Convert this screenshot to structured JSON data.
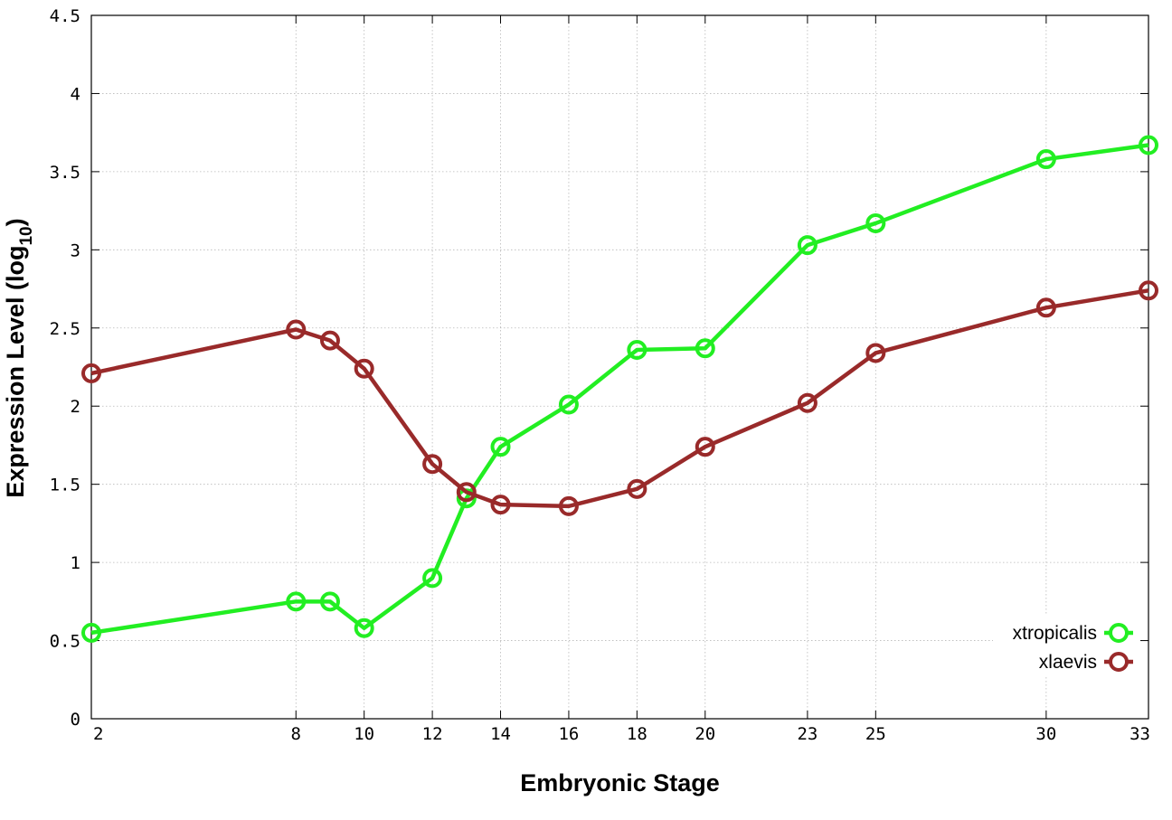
{
  "chart_data": {
    "type": "line",
    "xlabel": "Embryonic Stage",
    "ylabel": {
      "main": "Expression Level (log",
      "sub": "10",
      "close": ")"
    },
    "xlim": [
      2,
      33
    ],
    "ylim": [
      0,
      4.5
    ],
    "x_ticks": [
      2,
      8,
      10,
      12,
      14,
      16,
      18,
      20,
      23,
      25,
      30,
      33
    ],
    "x_tick_labels": [
      "2",
      "8",
      "10",
      "12",
      "14",
      "16",
      "18",
      "20",
      "23",
      "25",
      "30",
      "33"
    ],
    "y_ticks": [
      0,
      0.5,
      1,
      1.5,
      2,
      2.5,
      3,
      3.5,
      4,
      4.5
    ],
    "y_tick_labels": [
      "0",
      "0.5",
      "1",
      "1.5",
      "2",
      "2.5",
      "3",
      "3.5",
      "4",
      "4.5"
    ],
    "grid": true,
    "legend_position": "bottom-right",
    "series": [
      {
        "name": "xtropicalis",
        "color": "#22ee22",
        "x": [
          2,
          8,
          9,
          10,
          12,
          13,
          14,
          16,
          18,
          20,
          23,
          25,
          30,
          33
        ],
        "y": [
          0.55,
          0.75,
          0.75,
          0.58,
          0.9,
          1.41,
          1.74,
          2.01,
          2.36,
          2.37,
          3.03,
          3.17,
          3.58,
          3.67
        ]
      },
      {
        "name": "xlaevis",
        "color": "#992a2a",
        "x": [
          2,
          8,
          9,
          10,
          12,
          13,
          14,
          16,
          18,
          20,
          23,
          25,
          30,
          33
        ],
        "y": [
          2.21,
          2.49,
          2.42,
          2.24,
          1.63,
          1.45,
          1.37,
          1.36,
          1.47,
          1.74,
          2.02,
          2.34,
          2.63,
          2.74
        ]
      }
    ]
  }
}
